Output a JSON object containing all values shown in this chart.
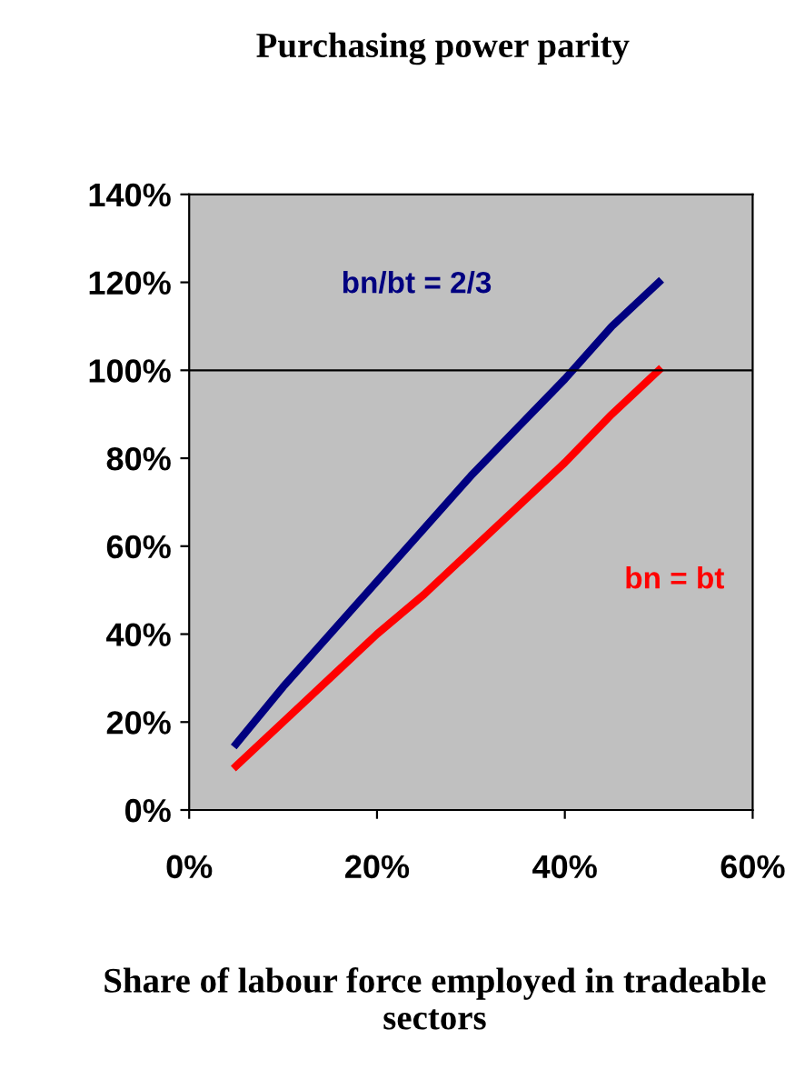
{
  "chart_data": {
    "type": "line",
    "title": "Purchasing power parity",
    "xlabel": "Share of labour force employed in tradeable sectors",
    "x": [
      5,
      10,
      15,
      20,
      25,
      30,
      35,
      40,
      45,
      50
    ],
    "series": [
      {
        "name": "bn/bt = 2/3",
        "color": "#000080",
        "values": [
          15,
          28,
          40,
          52,
          64,
          76,
          87,
          98,
          110,
          120
        ]
      },
      {
        "name": "bn = bt",
        "color": "#ff0000",
        "values": [
          10,
          20,
          30,
          40,
          49,
          59,
          69,
          79,
          90,
          100
        ]
      }
    ],
    "xlim": [
      0,
      60
    ],
    "xticks": [
      {
        "value": 0,
        "label": "0%"
      },
      {
        "value": 20,
        "label": "20%"
      },
      {
        "value": 40,
        "label": "40%"
      },
      {
        "value": 60,
        "label": "60%"
      }
    ],
    "ylim": [
      0,
      140
    ],
    "yticks": [
      {
        "value": 0,
        "label": "0%"
      },
      {
        "value": 20,
        "label": "20%"
      },
      {
        "value": 40,
        "label": "40%"
      },
      {
        "value": 60,
        "label": "60%"
      },
      {
        "value": 80,
        "label": "80%"
      },
      {
        "value": 100,
        "label": "100%"
      },
      {
        "value": 120,
        "label": "120%"
      },
      {
        "value": 140,
        "label": "140%"
      }
    ],
    "ref_lines": [
      {
        "axis": "y",
        "value": 100,
        "color": "#000000"
      }
    ],
    "grid": false,
    "legend": false,
    "marker": "none",
    "line_style": "solid"
  }
}
